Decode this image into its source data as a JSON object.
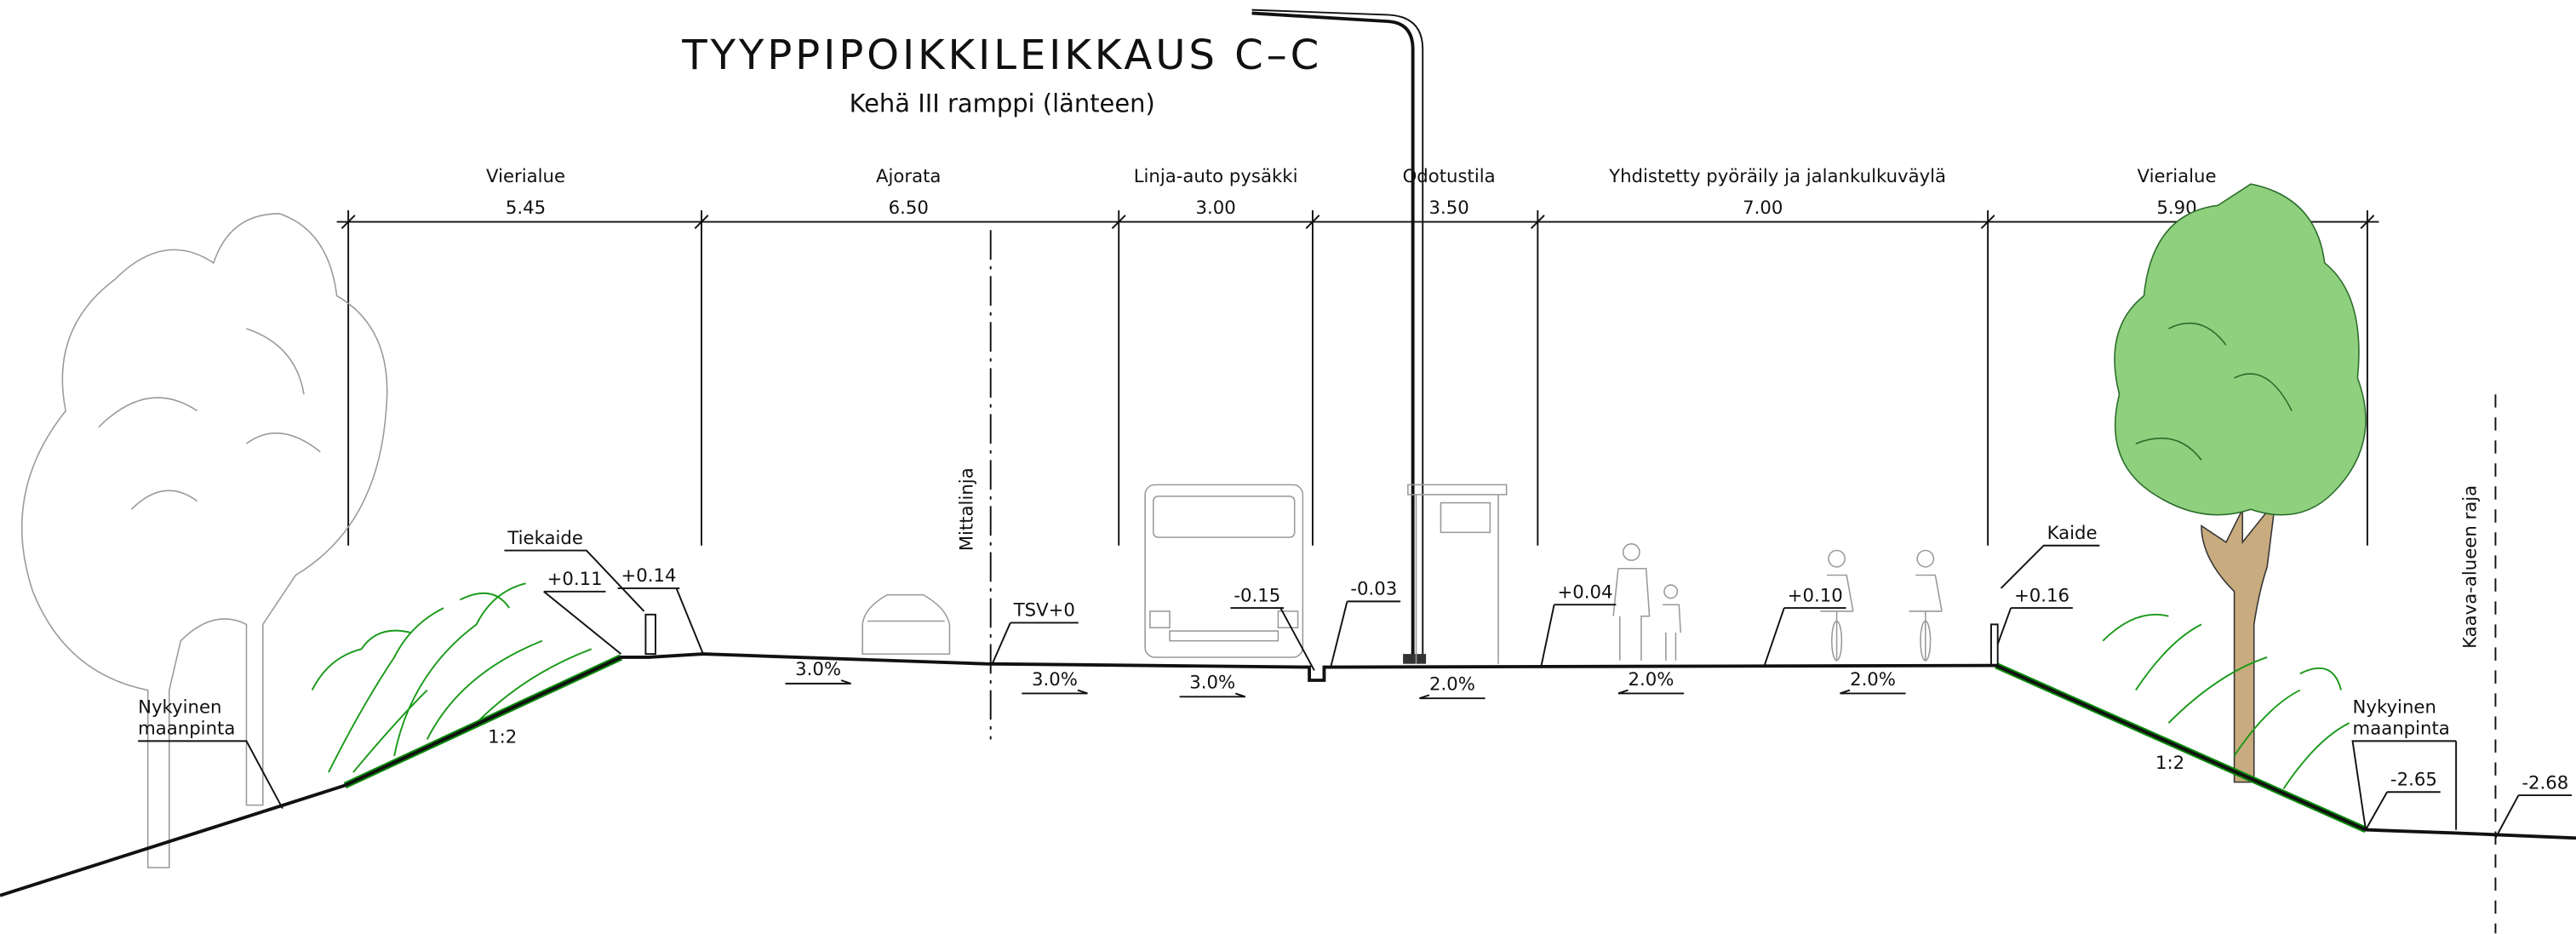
{
  "title": "TYYPPIPOIKKILEIKKAUS C–C",
  "subtitle": "Kehä III ramppi (länteen)",
  "sections": [
    {
      "label": "Vierialue",
      "width": "5.45"
    },
    {
      "label": "Ajorata",
      "width": "6.50"
    },
    {
      "label": "Linja-auto pysäkki",
      "width": "3.00"
    },
    {
      "label": "Odotustila",
      "width": "3.50"
    },
    {
      "label": "Yhdistetty pyöräily ja jalankulkuväylä",
      "width": "7.00"
    },
    {
      "label": "Vierialue",
      "width": "5.90"
    }
  ],
  "elevations": [
    "+0.11",
    "+0.14",
    "TSV+0",
    "-0.15",
    "-0.03",
    "+0.04",
    "+0.10",
    "+0.16",
    "-2.65",
    "-2.68"
  ],
  "slopes": [
    "3.0%",
    "3.0%",
    "3.0%",
    "2.0%",
    "2.0%",
    "2.0%"
  ],
  "labels": {
    "tiekaide": "Tiekaide",
    "kaide": "Kaide",
    "mittalinja": "Mittalinja",
    "kaava_raja": "Kaava-alueen raja"
  },
  "ground_left": [
    "Nykyinen",
    "maanpinta"
  ],
  "ground_right": [
    "Nykyinen",
    "maanpinta"
  ],
  "embankment": [
    "1:2",
    "1:2"
  ]
}
